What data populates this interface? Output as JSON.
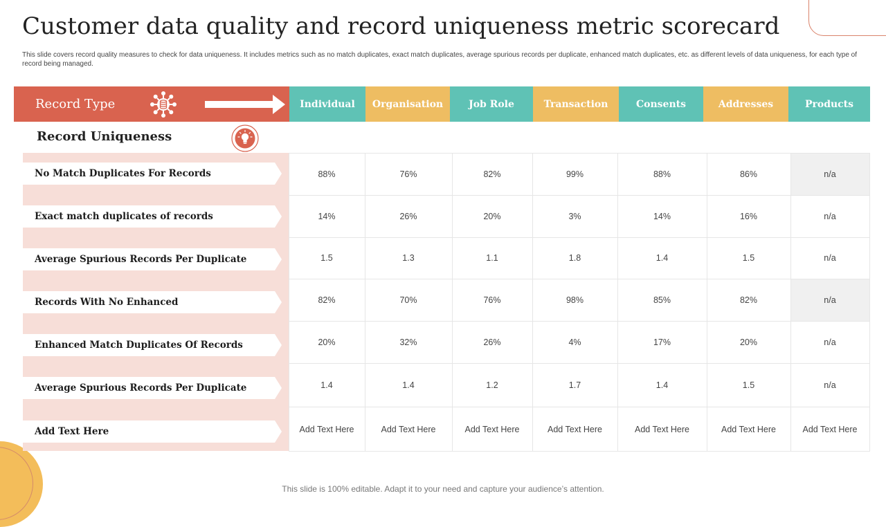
{
  "title": "Customer data quality and record uniqueness metric scorecard",
  "description": "This slide covers record quality measures to check for data uniqueness. It includes metrics such as no match duplicates, exact match duplicates, average spurious records per duplicate, enhanced match duplicates, etc. as different levels of data uniqueness, for each type of record being managed.",
  "header": {
    "record_type_label": "Record Type"
  },
  "section_label": "Record Uniqueness",
  "columns": [
    "Individual",
    "Organisation",
    "Job Role",
    "Transaction",
    "Consents",
    "Addresses",
    "Products"
  ],
  "rows": [
    {
      "label": "No Match Duplicates For Records",
      "values": [
        "88%",
        "76%",
        "82%",
        "99%",
        "88%",
        "86%",
        "n/a"
      ]
    },
    {
      "label": "Exact match duplicates of records",
      "values": [
        "14%",
        "26%",
        "20%",
        "3%",
        "14%",
        "16%",
        "n/a"
      ]
    },
    {
      "label": "Average  Spurious Records Per Duplicate",
      "values": [
        "1.5",
        "1.3",
        "1.1",
        "1.8",
        "1.4",
        "1.5",
        "n/a"
      ]
    },
    {
      "label": "Records With No Enhanced",
      "values": [
        "82%",
        "70%",
        "76%",
        "98%",
        "85%",
        "82%",
        "n/a"
      ]
    },
    {
      "label": "Enhanced Match Duplicates Of Records",
      "values": [
        "20%",
        "32%",
        "26%",
        "4%",
        "17%",
        "20%",
        "n/a"
      ]
    },
    {
      "label": "Average  Spurious Records Per Duplicate",
      "values": [
        "1.4",
        "1.4",
        "1.2",
        "1.7",
        "1.4",
        "1.5",
        "n/a"
      ]
    },
    {
      "label": "Add Text Here",
      "values": [
        "Add Text Here",
        "Add Text Here",
        "Add Text Here",
        "Add Text Here",
        "Add Text Here",
        "Add Text Here",
        "Add Text Here"
      ]
    }
  ],
  "footer": "This slide is 100% editable. Adapt it to your need and capture your audience’s attention.",
  "colors": {
    "accent_red": "#d9634f",
    "teal": "#5fc2b5",
    "yellow": "#eebd62",
    "row_label_bg": "#f7ded8"
  },
  "icons": {
    "header_icon": "database-gear-icon",
    "arrow": "arrow-right-icon",
    "section_icon": "lightbulb-icon"
  }
}
